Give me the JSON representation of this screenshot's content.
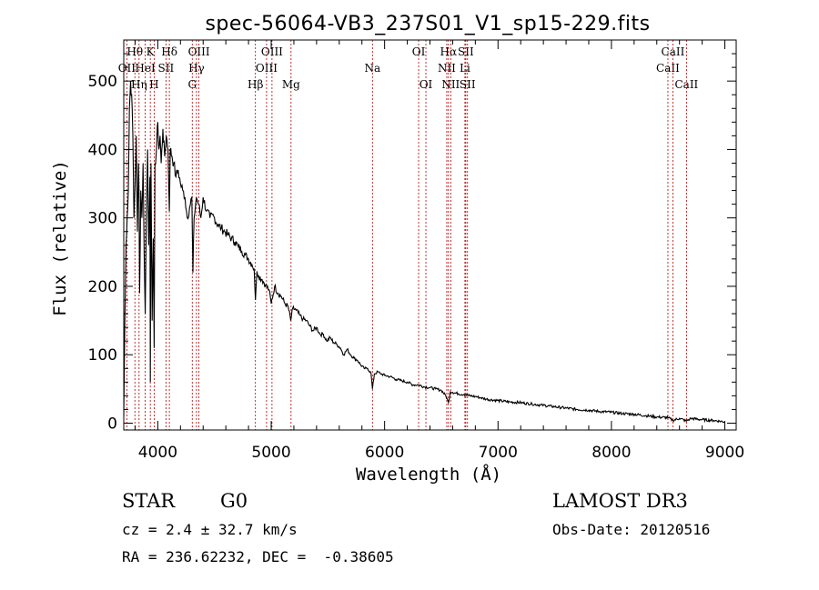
{
  "chart_data": {
    "type": "line",
    "title": "spec-56064-VB3_237S01_V1_sp15-229.fits",
    "xlabel": "Wavelength (Å)",
    "ylabel": "Flux (relative)",
    "xlim": [
      3700,
      9100
    ],
    "ylim": [
      -10,
      560
    ],
    "xticks": [
      4000,
      5000,
      6000,
      7000,
      8000,
      9000
    ],
    "yticks": [
      0,
      100,
      200,
      300,
      400,
      500
    ],
    "line_color": "#000000",
    "marker_color": "#b00000",
    "spectrum": {
      "x": [
        3700,
        3710,
        3720,
        3730,
        3740,
        3750,
        3760,
        3770,
        3780,
        3790,
        3800,
        3810,
        3820,
        3830,
        3835,
        3840,
        3850,
        3860,
        3870,
        3880,
        3889,
        3900,
        3910,
        3920,
        3930,
        3934,
        3940,
        3950,
        3960,
        3968,
        3975,
        3985,
        4000,
        4010,
        4020,
        4030,
        4045,
        4060,
        4075,
        4090,
        4102,
        4110,
        4125,
        4140,
        4160,
        4180,
        4200,
        4220,
        4240,
        4260,
        4280,
        4300,
        4310,
        4320,
        4340,
        4360,
        4380,
        4400,
        4430,
        4460,
        4480,
        4500,
        4530,
        4560,
        4590,
        4620,
        4650,
        4680,
        4710,
        4740,
        4770,
        4800,
        4830,
        4850,
        4861,
        4875,
        4890,
        4920,
        4950,
        4980,
        5000,
        5030,
        5060,
        5090,
        5120,
        5150,
        5172,
        5190,
        5220,
        5250,
        5280,
        5310,
        5340,
        5370,
        5400,
        5430,
        5460,
        5490,
        5520,
        5550,
        5580,
        5610,
        5640,
        5670,
        5700,
        5730,
        5760,
        5790,
        5820,
        5850,
        5880,
        5893,
        5910,
        5940,
        5970,
        6000,
        6050,
        6100,
        6150,
        6200,
        6250,
        6300,
        6350,
        6400,
        6450,
        6500,
        6540,
        6563,
        6580,
        6600,
        6650,
        6700,
        6750,
        6800,
        6850,
        6900,
        7000,
        7100,
        7200,
        7300,
        7400,
        7500,
        7600,
        7700,
        7800,
        7900,
        8000,
        8100,
        8200,
        8300,
        8400,
        8500,
        8542,
        8600,
        8662,
        8700,
        8800,
        8900,
        9000
      ],
      "y": [
        10,
        150,
        260,
        300,
        340,
        460,
        500,
        480,
        420,
        300,
        350,
        420,
        280,
        380,
        330,
        190,
        340,
        300,
        380,
        250,
        160,
        300,
        400,
        260,
        360,
        60,
        380,
        150,
        270,
        110,
        380,
        390,
        440,
        400,
        420,
        380,
        430,
        390,
        420,
        400,
        310,
        400,
        390,
        380,
        360,
        370,
        350,
        340,
        330,
        300,
        315,
        330,
        220,
        300,
        330,
        320,
        300,
        330,
        310,
        300,
        305,
        300,
        290,
        285,
        280,
        275,
        270,
        265,
        258,
        252,
        246,
        240,
        232,
        225,
        180,
        222,
        215,
        210,
        202,
        195,
        175,
        200,
        190,
        185,
        175,
        170,
        150,
        168,
        165,
        158,
        152,
        150,
        142,
        135,
        140,
        130,
        130,
        120,
        125,
        118,
        115,
        110,
        100,
        108,
        100,
        95,
        92,
        85,
        80,
        80,
        73,
        50,
        72,
        75,
        72,
        70,
        68,
        64,
        62,
        60,
        56,
        56,
        53,
        52,
        50,
        48,
        40,
        30,
        46,
        45,
        43,
        42,
        40,
        39,
        37,
        35,
        33,
        31,
        30,
        28,
        26,
        24,
        22,
        20,
        19,
        17,
        16,
        14,
        13,
        11,
        9,
        8,
        4,
        7,
        3,
        7,
        5,
        4,
        2
      ]
    },
    "lines": [
      {
        "name": "Hθ",
        "wave": 3798,
        "row": 0
      },
      {
        "name": "OII",
        "wave": 3727,
        "row": 1
      },
      {
        "name": "Hη",
        "wave": 3835,
        "row": 2
      },
      {
        "name": "HeI",
        "wave": 3889,
        "row": 1
      },
      {
        "name": "K",
        "wave": 3934,
        "row": 0
      },
      {
        "name": "H",
        "wave": 3968,
        "row": 2
      },
      {
        "name": "SII",
        "wave": 4072,
        "row": 1
      },
      {
        "name": "Hδ",
        "wave": 4102,
        "row": 0
      },
      {
        "name": "G",
        "wave": 4304,
        "row": 2
      },
      {
        "name": "Hγ",
        "wave": 4341,
        "row": 1
      },
      {
        "name": "OIII",
        "wave": 4363,
        "row": 0
      },
      {
        "name": "Hβ",
        "wave": 4861,
        "row": 2
      },
      {
        "name": "OIII",
        "wave": 4959,
        "row": 1
      },
      {
        "name": "OIII",
        "wave": 5007,
        "row": 0
      },
      {
        "name": "Mg",
        "wave": 5175,
        "row": 2
      },
      {
        "name": "Na",
        "wave": 5893,
        "row": 1
      },
      {
        "name": "OI",
        "wave": 6300,
        "row": 0
      },
      {
        "name": "OI",
        "wave": 6364,
        "row": 2
      },
      {
        "name": "NII",
        "wave": 6548,
        "row": 1
      },
      {
        "name": "Hα",
        "wave": 6563,
        "row": 0
      },
      {
        "name": "NII",
        "wave": 6583,
        "row": 2
      },
      {
        "name": "SII",
        "wave": 6716,
        "row": 0
      },
      {
        "name": "Li",
        "wave": 6708,
        "row": 1
      },
      {
        "name": "SII",
        "wave": 6731,
        "row": 2
      },
      {
        "name": "CaII",
        "wave": 8498,
        "row": 1
      },
      {
        "name": "CaII",
        "wave": 8542,
        "row": 0
      },
      {
        "name": "CaII",
        "wave": 8662,
        "row": 2
      }
    ]
  },
  "info": {
    "object_type": "STAR",
    "subclass": "G0",
    "survey": "LAMOST DR3",
    "redshift": "cz = 2.4 ± 32.7 km/s",
    "obs_date": "Obs-Date: 20120516",
    "coords": "RA = 236.62232, DEC =  -0.38605"
  }
}
